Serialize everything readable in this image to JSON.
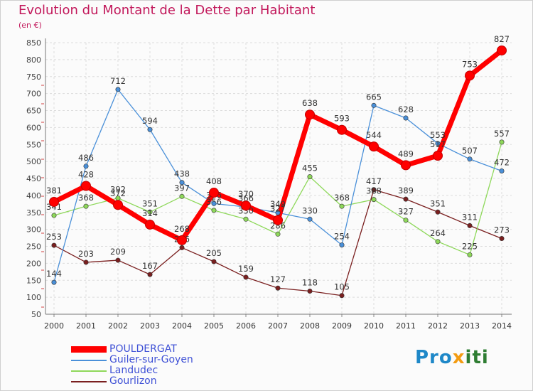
{
  "title": "Evolution du Montant de la Dette par Habitant",
  "unit_label": "(en €)",
  "logo": {
    "part1": "Pro",
    "part2": "x",
    "part3": "iti"
  },
  "chart_data": {
    "type": "line",
    "title": "Evolution du Montant de la Dette par Habitant",
    "ylabel": "(en €)",
    "xlabel": "",
    "x": [
      "2000",
      "2001",
      "2002",
      "2003",
      "2004",
      "2005",
      "2006",
      "2007",
      "2008",
      "2009",
      "2010",
      "2011",
      "2012",
      "2013",
      "2014"
    ],
    "ylim": [
      50,
      850
    ],
    "yticks": [
      50,
      100,
      150,
      200,
      250,
      300,
      350,
      400,
      450,
      500,
      550,
      600,
      650,
      700,
      750,
      800,
      850
    ],
    "grid": true,
    "legend_position": "bottom-left",
    "series": [
      {
        "name": "POULDERGAT",
        "color": "#ff0000",
        "values": [
          381,
          428,
          372,
          314,
          268,
          408,
          370,
          327,
          638,
          593,
          544,
          489,
          517,
          753,
          827
        ]
      },
      {
        "name": "Guiler-sur-Goyen",
        "color": "#4a90d9",
        "values": [
          144,
          486,
          712,
          594,
          438,
          376,
          366,
          349,
          330,
          254,
          665,
          628,
          553,
          507,
          472
        ]
      },
      {
        "name": "Landudec",
        "color": "#8ed85a",
        "values": [
          341,
          368,
          392,
          351,
          397,
          356,
          330,
          286,
          455,
          368,
          388,
          327,
          264,
          225,
          557
        ]
      },
      {
        "name": "Gourlizon",
        "color": "#7a1f1f",
        "values": [
          253,
          203,
          209,
          167,
          246,
          205,
          159,
          127,
          118,
          105,
          417,
          389,
          351,
          311,
          273
        ]
      }
    ]
  }
}
